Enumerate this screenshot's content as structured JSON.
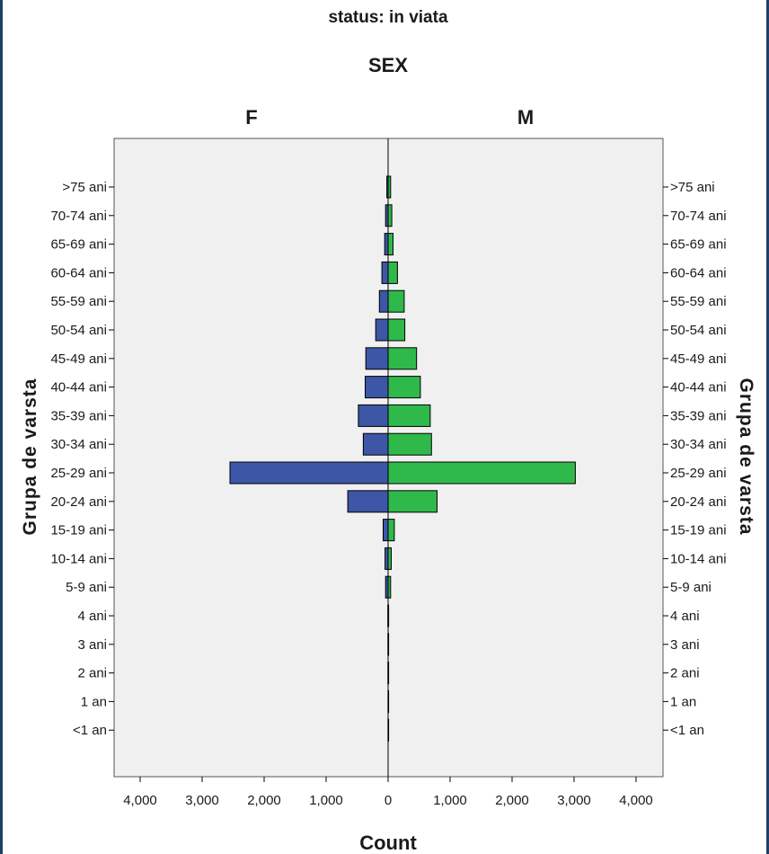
{
  "chart_data": {
    "type": "bar",
    "orientation": "horizontal",
    "subtype": "population-pyramid",
    "title": "status: in viata",
    "panel_variable": "SEX",
    "panels": [
      "F",
      "M"
    ],
    "categories": [
      ">75 ani",
      "70-74 ani",
      "65-69 ani",
      "60-64 ani",
      "55-59 ani",
      "50-54 ani",
      "45-49 ani",
      "40-44 ani",
      "35-39 ani",
      "30-34 ani",
      "25-29 ani",
      "20-24 ani",
      "15-19 ani",
      "10-14 ani",
      "5-9 ani",
      "4 ani",
      "3 ani",
      "2 ani",
      "1 an",
      "<1 an"
    ],
    "series": [
      {
        "name": "F",
        "color": "#3d56a6",
        "values": [
          20,
          40,
          55,
          100,
          140,
          200,
          360,
          370,
          480,
          400,
          2550,
          650,
          80,
          50,
          40,
          5,
          3,
          3,
          2,
          1
        ]
      },
      {
        "name": "M",
        "color": "#2fb94b",
        "values": [
          40,
          60,
          80,
          150,
          260,
          270,
          460,
          520,
          680,
          700,
          3020,
          790,
          100,
          50,
          40,
          5,
          3,
          3,
          2,
          1
        ]
      }
    ],
    "xlabel": "Count",
    "ylabel": "Grupa de varsta",
    "xlim": [
      -4500,
      4500
    ],
    "xticks": [
      -4000,
      -3000,
      -2000,
      -1000,
      0,
      1000,
      2000,
      3000,
      4000
    ],
    "xtick_labels": [
      "4,000",
      "3,000",
      "2,000",
      "1,000",
      "0",
      "1,000",
      "2,000",
      "3,000",
      "4,000"
    ],
    "grid": false,
    "plot_background": "#f0f0f0"
  }
}
